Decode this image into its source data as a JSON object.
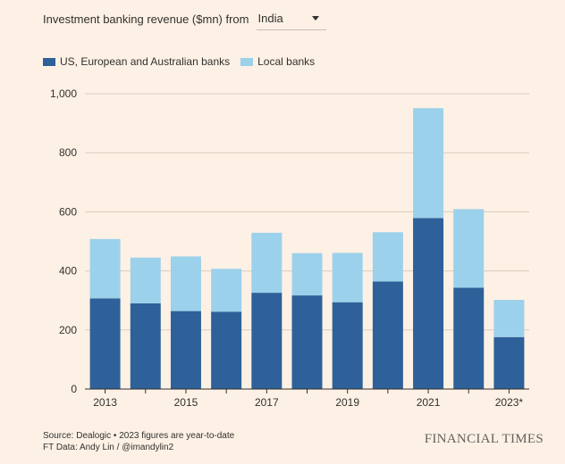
{
  "header": {
    "label": "Investment banking revenue ($mn) from",
    "selected_country": "India"
  },
  "colors": {
    "background": "#fdf1e5",
    "dark_series": "#2e6199",
    "light_series": "#9cd1eb",
    "grid": "#d9cbbe",
    "axis": "#33302e"
  },
  "chart_data": {
    "type": "bar",
    "stacked": true,
    "title": "Investment banking revenue ($mn) from India",
    "categories": [
      "2013",
      "2014",
      "2015",
      "2016",
      "2017",
      "2018",
      "2019",
      "2020",
      "2021",
      "2022",
      "2023*"
    ],
    "tick_labels": [
      "2013",
      "",
      "2015",
      "",
      "2017",
      "",
      "2019",
      "",
      "2021",
      "",
      "2023*"
    ],
    "series": [
      {
        "name": "US, European and Australian banks",
        "color": "#2e6199",
        "values": [
          307,
          290,
          264,
          262,
          326,
          317,
          294,
          364,
          579,
          343,
          176
        ]
      },
      {
        "name": "Local banks",
        "color": "#9cd1eb",
        "values": [
          201,
          155,
          185,
          145,
          203,
          143,
          167,
          167,
          372,
          266,
          126
        ]
      }
    ],
    "ylim": [
      0,
      1000
    ],
    "yticks": [
      0,
      200,
      400,
      600,
      800,
      1000
    ],
    "ytick_labels": [
      "0",
      "200",
      "400",
      "600",
      "800",
      "1,000"
    ],
    "grid": true,
    "legend": "top-left"
  },
  "footer": {
    "source": "Source: Dealogic • 2023 figures are year-to-date",
    "credit": "FT Data: Andy Lin / @imandylin2",
    "logo": "FINANCIAL TIMES"
  }
}
